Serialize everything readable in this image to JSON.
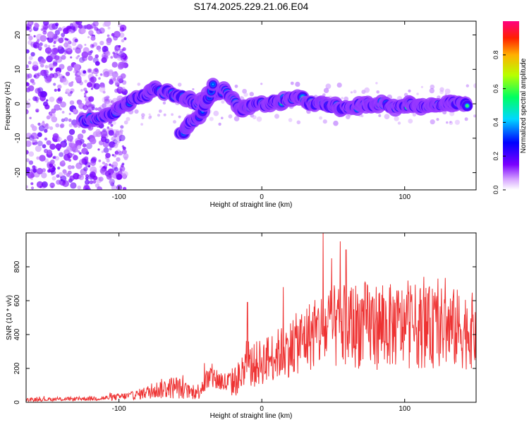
{
  "title": "S174.2025.229.21.06.E04",
  "chart_data": [
    {
      "type": "heatmap",
      "name": "spectrogram",
      "xlabel": "Height of straight line (km)",
      "ylabel": "Frequency (Hz)",
      "xlim": [
        -165,
        150
      ],
      "ylim": [
        -25,
        24
      ],
      "xticks": [
        -100,
        0,
        100
      ],
      "yticks": [
        -20,
        -10,
        0,
        10,
        20
      ],
      "colorbar": {
        "label": "Normalized spectral amplitude",
        "range": [
          0,
          1
        ],
        "ticks": [
          0.0,
          0.2,
          0.4,
          0.6,
          0.8
        ],
        "tick_labels": [
          "0.0",
          "0.2",
          "0.4",
          "0.6",
          "0.8"
        ]
      },
      "ridge": {
        "description": "dominant frequency track",
        "x": [
          -125,
          -115,
          -105,
          -95,
          -85,
          -75,
          -65,
          -55,
          -45,
          -35,
          -25,
          -15,
          -5,
          5,
          15,
          25,
          35,
          45,
          55,
          65,
          75,
          85,
          95,
          105,
          115,
          125,
          135,
          145
        ],
        "y": [
          -5,
          -4,
          -3,
          0,
          2,
          4,
          3,
          2,
          0,
          3,
          4,
          -2,
          0,
          0,
          1,
          2,
          0,
          0,
          -1,
          -1,
          0,
          0,
          -1,
          0,
          -1,
          0,
          0,
          0
        ],
        "peak_amplitude": [
          0.35,
          0.45,
          0.4,
          0.45,
          0.5,
          0.55,
          0.45,
          0.4,
          0.4,
          0.45,
          0.5,
          0.7,
          0.85,
          0.8,
          0.75,
          0.7,
          0.7,
          0.75,
          0.7,
          0.7,
          0.75,
          0.75,
          0.8,
          0.8,
          0.8,
          0.85,
          0.85,
          0.85
        ]
      },
      "secondary_branch": {
        "x": [
          -57,
          -50,
          -43,
          -37,
          -33
        ],
        "y": [
          -9,
          -6,
          -3,
          2,
          8
        ]
      }
    },
    {
      "type": "line",
      "name": "snr",
      "xlabel": "Height of straight line (km)",
      "ylabel": "SNR (10 * v/v)",
      "xlim": [
        -165,
        150
      ],
      "ylim": [
        0,
        1000
      ],
      "xticks": [
        -100,
        0,
        100
      ],
      "yticks": [
        0,
        200,
        400,
        600,
        800
      ],
      "color": "#ee3333",
      "envelope": {
        "x": [
          -165,
          -130,
          -110,
          -90,
          -80,
          -70,
          -60,
          -50,
          -45,
          -40,
          -35,
          -30,
          -25,
          -20,
          -15,
          -10,
          0,
          10,
          20,
          30,
          40,
          50,
          60,
          70,
          80,
          90,
          100,
          110,
          120,
          130,
          140,
          150
        ],
        "mean": [
          15,
          20,
          25,
          40,
          60,
          80,
          90,
          60,
          60,
          120,
          150,
          130,
          110,
          120,
          150,
          200,
          240,
          280,
          320,
          380,
          420,
          440,
          450,
          460,
          450,
          450,
          450,
          450,
          440,
          440,
          430,
          420
        ],
        "amplitude": [
          10,
          12,
          15,
          25,
          40,
          60,
          70,
          40,
          50,
          70,
          80,
          70,
          70,
          90,
          110,
          130,
          140,
          150,
          170,
          200,
          230,
          250,
          260,
          260,
          260,
          250,
          250,
          250,
          240,
          240,
          240,
          220
        ],
        "peaks": [
          {
            "x": 43,
            "y": 1000
          },
          {
            "x": 55,
            "y": 950
          },
          {
            "x": 59,
            "y": 900
          },
          {
            "x": 49,
            "y": 850
          },
          {
            "x": -10,
            "y": 590
          },
          {
            "x": 15,
            "y": 680
          }
        ]
      }
    }
  ]
}
